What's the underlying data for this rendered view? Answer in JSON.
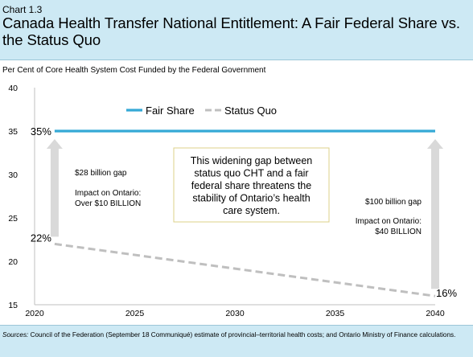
{
  "header": {
    "chart_number": "Chart 1.3",
    "title": "Canada Health Transfer National Entitlement: A Fair Federal Share vs. the Status Quo"
  },
  "subtitle": "Per Cent of Core Health System Cost Funded by the Federal Government",
  "footer": {
    "sources_label": "Sources:",
    "sources_text": "Council of the Federation (September 18 Communiqué) estimate of provincial–territorial health costs; and Ontario Ministry of Finance calculations."
  },
  "colors": {
    "fair_share": "#35a9d6",
    "status_quo": "#bfbfbf",
    "arrow": "#d9d9d9",
    "callout_border": "#ddd08a",
    "header_band": "#cde9f4"
  },
  "chart_data": {
    "type": "line",
    "title": "Canada Health Transfer National Entitlement: A Fair Federal Share vs. the Status Quo",
    "ylabel": "Per Cent of Core Health System Cost Funded by the Federal Government",
    "xlabel": "",
    "xlim": [
      2020,
      2040
    ],
    "ylim": [
      15,
      40
    ],
    "x_ticks": [
      2020,
      2025,
      2030,
      2035,
      2040
    ],
    "y_ticks": [
      15,
      20,
      25,
      30,
      35,
      40
    ],
    "grid": false,
    "legend_position": "top",
    "series": [
      {
        "name": "Fair Share",
        "style": "solid",
        "color": "#35a9d6",
        "x": [
          2021,
          2040
        ],
        "y": [
          35,
          35
        ]
      },
      {
        "name": "Status Quo",
        "style": "dashed",
        "color": "#bfbfbf",
        "x": [
          2021,
          2040
        ],
        "y": [
          22,
          16
        ]
      }
    ],
    "end_labels": [
      {
        "text": "35%",
        "x": 2021,
        "y": 35
      },
      {
        "text": "22%",
        "x": 2021,
        "y": 22
      },
      {
        "text": "16%",
        "x": 2040,
        "y": 16
      }
    ],
    "gap_arrows": [
      {
        "x": 2021,
        "from": 22,
        "to": 35
      },
      {
        "x": 2040,
        "from": 16,
        "to": 35
      }
    ],
    "annotations": {
      "left_gap": "$28 billion gap",
      "left_impact_1": "Impact on Ontario:",
      "left_impact_2": "Over $10 BILLION",
      "right_gap": "$100 billion gap",
      "right_impact_1": "Impact on Ontario:",
      "right_impact_2": "$40 BILLION",
      "callout_lines": [
        "This widening gap between",
        "status quo CHT and a fair",
        "federal share threatens the",
        "stability of Ontario’s health",
        "care system."
      ]
    }
  }
}
